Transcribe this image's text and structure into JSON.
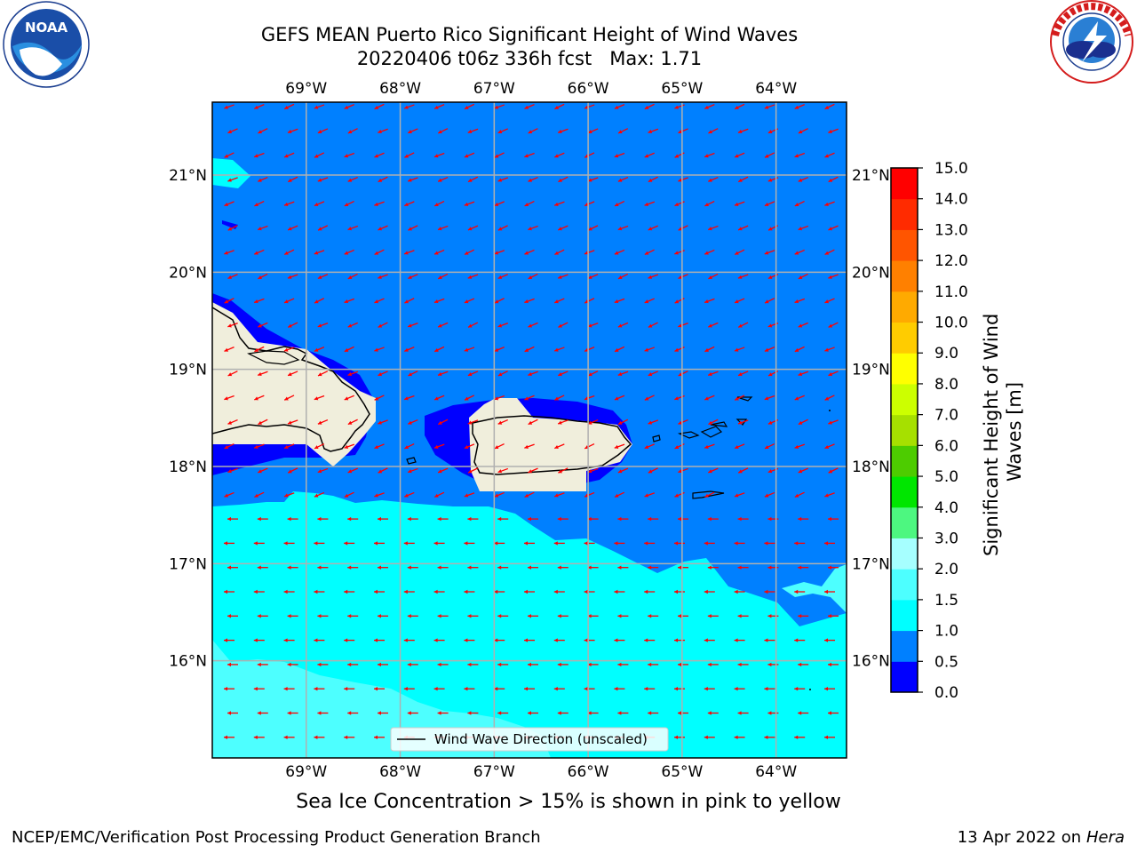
{
  "header": {
    "title_line1": "GEFS MEAN Puerto Rico Significant Height of Wind Waves",
    "title_line2": "20220406 t06z 336h fcst   Max: 1.71"
  },
  "logos": {
    "left": {
      "name": "NOAA",
      "text": "NOAA",
      "ring_text": "NATIONAL OCEANIC AND ATMOSPHERIC ADMINISTRATION · U.S. DEPARTMENT OF COMMERCE"
    },
    "right": {
      "name": "National Weather Service",
      "ring_text": "NATIONAL WEATHER SERVICE"
    }
  },
  "map": {
    "lon_labels": [
      "69°W",
      "68°W",
      "67°W",
      "66°W",
      "65°W",
      "64°W"
    ],
    "lat_labels": [
      "21°N",
      "20°N",
      "19°N",
      "18°N",
      "17°N",
      "16°N"
    ],
    "lon_values": [
      -69,
      -68,
      -67,
      -66,
      -65,
      -64
    ],
    "lat_values": [
      21,
      20,
      19,
      18,
      17,
      16
    ],
    "lon_range": [
      -70,
      -63.25
    ],
    "lat_range": [
      15,
      21.75
    ],
    "legend_label": "Wind Wave Direction (unscaled)",
    "arrow_color": "#ff0000",
    "colors": {
      "land": "#f0eedc",
      "band_0_0_5": "#0000ff",
      "band_0_5_1_0": "#0080ff",
      "band_1_0_1_5": "#00ffff",
      "band_1_5_2_0": "#4dffff"
    }
  },
  "colorbar": {
    "label": "Significant Height of Wind Waves [m]",
    "label_line1": "Significant Height of Wind",
    "label_line2": "Waves [m]",
    "ticks": [
      "0.0",
      "0.5",
      "1.0",
      "1.5",
      "2.0",
      "3.0",
      "4.0",
      "5.0",
      "6.0",
      "7.0",
      "8.0",
      "9.0",
      "10.0",
      "11.0",
      "12.0",
      "13.0",
      "14.0",
      "15.0"
    ],
    "colors": [
      "#0000ff",
      "#0080ff",
      "#00ffff",
      "#4dffff",
      "#a6ffff",
      "#4df780",
      "#00e600",
      "#4dcc00",
      "#a6e000",
      "#ccff00",
      "#ffff00",
      "#ffcc00",
      "#ffaa00",
      "#ff8000",
      "#ff5500",
      "#ff2b00",
      "#ff0000"
    ]
  },
  "note": "Sea Ice Concentration > 15% is shown in pink to yellow",
  "footer": {
    "left": "NCEP/EMC/Verification Post Processing Product Generation Branch",
    "right_prefix": "13 Apr 2022 on ",
    "right_host": "Hera"
  }
}
